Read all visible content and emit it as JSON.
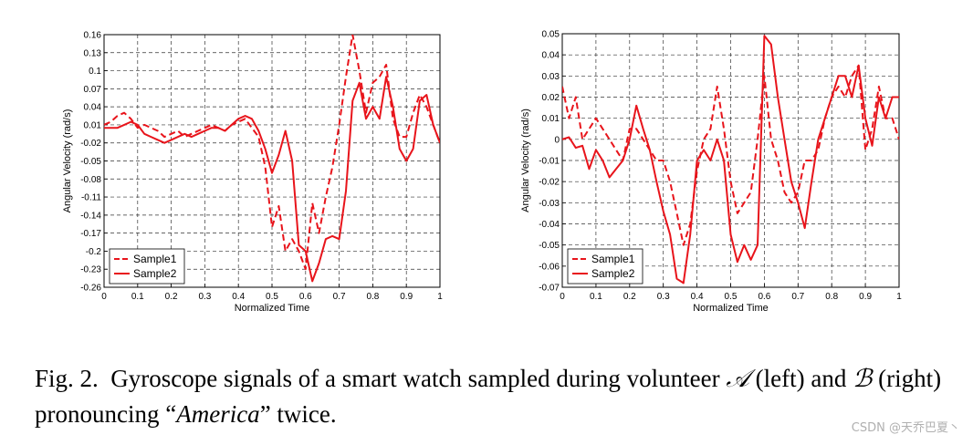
{
  "chart_data": [
    {
      "type": "line",
      "position": "left",
      "xlabel": "Normalized Time",
      "ylabel": "Angular Velocity (rad/s)",
      "xlim": [
        0,
        1
      ],
      "ylim": [
        -0.26,
        0.16
      ],
      "xticks": [
        "0",
        "0.1",
        "0.2",
        "0.3",
        "0.4",
        "0.5",
        "0.6",
        "0.7",
        "0.8",
        "0.9",
        "1"
      ],
      "yticks": [
        "0.16",
        "0.13",
        "0.1",
        "0.07",
        "0.04",
        "0.01",
        "-0.02",
        "-0.05",
        "-0.08",
        "-0.11",
        "-0.14",
        "-0.17",
        "-0.2",
        "-0.23",
        "-0.26"
      ],
      "grid": true,
      "legend": "bottom-left",
      "series": [
        {
          "name": "Sample1",
          "style": "dashed",
          "color": "#e8141b",
          "x": [
            0,
            0.02,
            0.04,
            0.06,
            0.08,
            0.1,
            0.12,
            0.14,
            0.16,
            0.18,
            0.2,
            0.22,
            0.24,
            0.26,
            0.28,
            0.3,
            0.32,
            0.34,
            0.36,
            0.38,
            0.4,
            0.42,
            0.44,
            0.46,
            0.48,
            0.5,
            0.52,
            0.54,
            0.56,
            0.58,
            0.6,
            0.62,
            0.64,
            0.66,
            0.68,
            0.7,
            0.72,
            0.74,
            0.76,
            0.78,
            0.8,
            0.82,
            0.84,
            0.86,
            0.88,
            0.9,
            0.92,
            0.94,
            0.96,
            0.98,
            1
          ],
          "values": [
            0.01,
            0.015,
            0.025,
            0.03,
            0.02,
            0.005,
            0.01,
            0.005,
            0,
            -0.01,
            -0.005,
            0,
            -0.01,
            -0.005,
            0,
            0.005,
            0.01,
            0.005,
            0,
            0.01,
            0.015,
            0.02,
            0.005,
            -0.01,
            -0.06,
            -0.16,
            -0.125,
            -0.2,
            -0.18,
            -0.2,
            -0.23,
            -0.12,
            -0.17,
            -0.11,
            -0.06,
            0.01,
            0.09,
            0.16,
            0.1,
            0.03,
            0.08,
            0.09,
            0.11,
            0.02,
            -0.01,
            -0.01,
            0.03,
            0.06,
            0.04,
            0.01,
            -0.02
          ]
        },
        {
          "name": "Sample2",
          "style": "solid",
          "color": "#e8141b",
          "x": [
            0,
            0.02,
            0.04,
            0.06,
            0.08,
            0.1,
            0.12,
            0.14,
            0.16,
            0.18,
            0.2,
            0.22,
            0.24,
            0.26,
            0.28,
            0.3,
            0.32,
            0.34,
            0.36,
            0.38,
            0.4,
            0.42,
            0.44,
            0.46,
            0.48,
            0.5,
            0.52,
            0.54,
            0.56,
            0.58,
            0.6,
            0.62,
            0.64,
            0.66,
            0.68,
            0.7,
            0.72,
            0.74,
            0.76,
            0.78,
            0.8,
            0.82,
            0.84,
            0.86,
            0.88,
            0.9,
            0.92,
            0.94,
            0.96,
            0.98,
            1
          ],
          "values": [
            0.005,
            0.005,
            0.005,
            0.01,
            0.015,
            0.01,
            -0.005,
            -0.01,
            -0.015,
            -0.02,
            -0.015,
            -0.01,
            -0.005,
            -0.01,
            -0.005,
            0,
            0.005,
            0.005,
            0,
            0.01,
            0.02,
            0.025,
            0.02,
            0,
            -0.03,
            -0.07,
            -0.04,
            0,
            -0.05,
            -0.19,
            -0.2,
            -0.25,
            -0.22,
            -0.18,
            -0.175,
            -0.18,
            -0.1,
            0.05,
            0.08,
            0.02,
            0.04,
            0.02,
            0.09,
            0.04,
            -0.03,
            -0.05,
            -0.03,
            0.05,
            0.06,
            0.01,
            -0.02
          ]
        }
      ]
    },
    {
      "type": "line",
      "position": "right",
      "xlabel": "Normalized Time",
      "ylabel": "Angular Velocity (rad/s)",
      "xlim": [
        0,
        1
      ],
      "ylim": [
        -0.07,
        0.05
      ],
      "xticks": [
        "0",
        "0.1",
        "0.2",
        "0.3",
        "0.4",
        "0.5",
        "0.6",
        "0.7",
        "0.8",
        "0.9",
        "1"
      ],
      "yticks": [
        "0.05",
        "0.04",
        "0.03",
        "0.02",
        "0.01",
        "0",
        "-0.01",
        "-0.02",
        "-0.03",
        "-0.04",
        "-0.05",
        "-0.06",
        "-0.07"
      ],
      "grid": true,
      "legend": "bottom-left",
      "series": [
        {
          "name": "Sample1",
          "style": "dashed",
          "color": "#e8141b",
          "x": [
            0,
            0.02,
            0.04,
            0.06,
            0.08,
            0.1,
            0.12,
            0.14,
            0.16,
            0.18,
            0.2,
            0.22,
            0.24,
            0.26,
            0.28,
            0.3,
            0.32,
            0.34,
            0.36,
            0.38,
            0.4,
            0.42,
            0.44,
            0.46,
            0.48,
            0.5,
            0.52,
            0.54,
            0.56,
            0.58,
            0.6,
            0.62,
            0.64,
            0.66,
            0.68,
            0.7,
            0.72,
            0.74,
            0.76,
            0.78,
            0.8,
            0.82,
            0.84,
            0.86,
            0.88,
            0.9,
            0.92,
            0.94,
            0.96,
            0.98,
            1
          ],
          "values": [
            0.025,
            0.01,
            0.02,
            0,
            0.005,
            0.01,
            0.005,
            0,
            -0.005,
            -0.01,
            0.005,
            0.005,
            0,
            -0.005,
            -0.01,
            -0.01,
            -0.02,
            -0.035,
            -0.05,
            -0.04,
            -0.015,
            0,
            0.005,
            0.025,
            0.005,
            -0.02,
            -0.035,
            -0.03,
            -0.025,
            0,
            0.03,
            0,
            -0.01,
            -0.025,
            -0.03,
            -0.025,
            -0.01,
            -0.01,
            -0.005,
            0.01,
            0.02,
            0.025,
            0.02,
            0.03,
            0.035,
            -0.005,
            0.005,
            0.025,
            0.01,
            0.01,
            0
          ]
        },
        {
          "name": "Sample2",
          "style": "solid",
          "color": "#e8141b",
          "x": [
            0,
            0.02,
            0.04,
            0.06,
            0.08,
            0.1,
            0.12,
            0.14,
            0.16,
            0.18,
            0.2,
            0.22,
            0.24,
            0.26,
            0.28,
            0.3,
            0.32,
            0.34,
            0.36,
            0.38,
            0.4,
            0.42,
            0.44,
            0.46,
            0.48,
            0.5,
            0.52,
            0.54,
            0.56,
            0.58,
            0.6,
            0.62,
            0.64,
            0.66,
            0.68,
            0.7,
            0.72,
            0.74,
            0.76,
            0.78,
            0.8,
            0.82,
            0.84,
            0.86,
            0.88,
            0.9,
            0.92,
            0.94,
            0.96,
            0.98,
            1
          ],
          "values": [
            0,
            0.001,
            -0.004,
            -0.003,
            -0.014,
            -0.005,
            -0.01,
            -0.018,
            -0.014,
            -0.01,
            0,
            0.016,
            0.005,
            -0.005,
            -0.02,
            -0.034,
            -0.045,
            -0.066,
            -0.068,
            -0.045,
            -0.01,
            -0.005,
            -0.01,
            0,
            -0.01,
            -0.045,
            -0.058,
            -0.05,
            -0.057,
            -0.05,
            0.049,
            0.045,
            0.02,
            0,
            -0.02,
            -0.03,
            -0.042,
            -0.02,
            0,
            0.01,
            0.02,
            0.03,
            0.03,
            0.02,
            0.035,
            0.01,
            -0.003,
            0.02,
            0.01,
            0.02,
            0.02
          ]
        }
      ]
    }
  ],
  "caption": {
    "label": "Fig. 2.",
    "part1": "Gyroscope signals of a smart watch sampled during volunteer ",
    "sym_a": "𝒜",
    "part2": " (left) and ",
    "sym_b": "ℬ",
    "part3": " (right) pronouncing “",
    "emph": "America",
    "part4": "” twice."
  },
  "watermark": "CSDN @天乔巴夏丶"
}
